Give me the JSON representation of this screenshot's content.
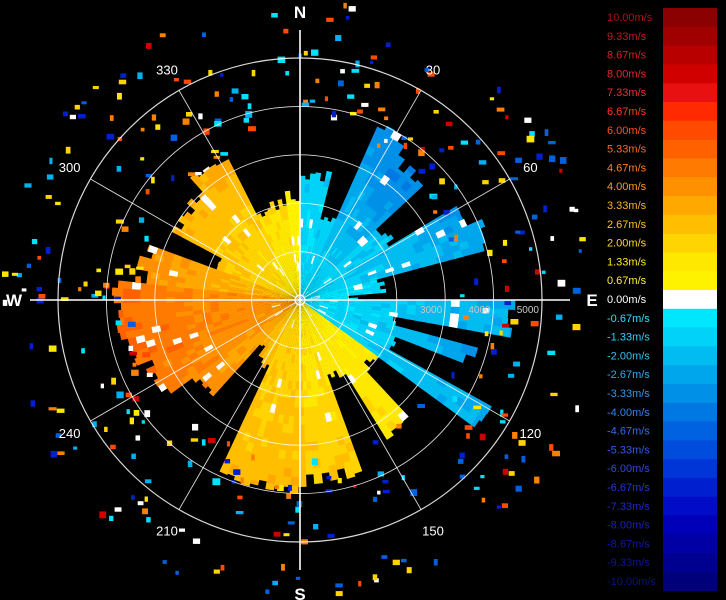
{
  "chart_data": {
    "type": "polar-radar-velocity",
    "cardinals": {
      "north": "N",
      "east": "E",
      "south": "S",
      "west": "W"
    },
    "azimuth_labels": [
      {
        "deg": 30,
        "text": "30"
      },
      {
        "deg": 60,
        "text": "60"
      },
      {
        "deg": 120,
        "text": "120"
      },
      {
        "deg": 150,
        "text": "150"
      },
      {
        "deg": 210,
        "text": "210"
      },
      {
        "deg": 240,
        "text": "240"
      },
      {
        "deg": 300,
        "text": "300"
      },
      {
        "deg": 330,
        "text": "330"
      }
    ],
    "range_rings": [
      1000,
      2000,
      3000,
      4000,
      5000
    ],
    "range_labels": [
      {
        "value": 3000,
        "text": "3000"
      },
      {
        "value": 4000,
        "text": "4000"
      },
      {
        "value": 5000,
        "text": "5000"
      }
    ],
    "max_range": 5000,
    "colorbar": {
      "unit": "m/s",
      "entries": [
        {
          "label": "10.00m/s",
          "value": 10.0,
          "color": "#8b0000",
          "text_color": "#b01010"
        },
        {
          "label": "9.33m/s",
          "value": 9.33,
          "color": "#a00000",
          "text_color": "#c81818"
        },
        {
          "label": "8.67m/s",
          "value": 8.67,
          "color": "#b80000",
          "text_color": "#d82020"
        },
        {
          "label": "8.00m/s",
          "value": 8.0,
          "color": "#d00000",
          "text_color": "#e82828"
        },
        {
          "label": "7.33m/s",
          "value": 7.33,
          "color": "#e81010",
          "text_color": "#f03030"
        },
        {
          "label": "6.67m/s",
          "value": 6.67,
          "color": "#ff2a00",
          "text_color": "#ff3a20"
        },
        {
          "label": "6.00m/s",
          "value": 6.0,
          "color": "#ff4a00",
          "text_color": "#ff5020"
        },
        {
          "label": "5.33m/s",
          "value": 5.33,
          "color": "#ff6000",
          "text_color": "#ff6a20"
        },
        {
          "label": "4.67m/s",
          "value": 4.67,
          "color": "#ff7a00",
          "text_color": "#ff8020"
        },
        {
          "label": "4.00m/s",
          "value": 4.0,
          "color": "#ff9000",
          "text_color": "#ff9a20"
        },
        {
          "label": "3.33m/s",
          "value": 3.33,
          "color": "#ffa800",
          "text_color": "#ffb020"
        },
        {
          "label": "2.67m/s",
          "value": 2.67,
          "color": "#ffbe00",
          "text_color": "#ffc420"
        },
        {
          "label": "2.00m/s",
          "value": 2.0,
          "color": "#ffd400",
          "text_color": "#ffd820"
        },
        {
          "label": "1.33m/s",
          "value": 1.33,
          "color": "#ffe800",
          "text_color": "#ffe820"
        },
        {
          "label": "0.67m/s",
          "value": 0.67,
          "color": "#fff200",
          "text_color": "#fff040"
        },
        {
          "label": "0.00m/s",
          "value": 0.0,
          "color": "#ffffff",
          "text_color": "#ffffff"
        },
        {
          "label": "-0.67m/s",
          "value": -0.67,
          "color": "#00e6ff",
          "text_color": "#30e0ff"
        },
        {
          "label": "-1.33m/s",
          "value": -1.33,
          "color": "#00d2f8",
          "text_color": "#30d0f8"
        },
        {
          "label": "-2.00m/s",
          "value": -2.0,
          "color": "#00bcf0",
          "text_color": "#30c0f0"
        },
        {
          "label": "-2.67m/s",
          "value": -2.67,
          "color": "#00a6ec",
          "text_color": "#30aaee"
        },
        {
          "label": "-3.33m/s",
          "value": -3.33,
          "color": "#0090e8",
          "text_color": "#3098ea"
        },
        {
          "label": "-4.00m/s",
          "value": -4.0,
          "color": "#0078e4",
          "text_color": "#3084e8"
        },
        {
          "label": "-4.67m/s",
          "value": -4.67,
          "color": "#0062e0",
          "text_color": "#3070e4"
        },
        {
          "label": "-5.33m/s",
          "value": -5.33,
          "color": "#004cdc",
          "text_color": "#305ce0"
        },
        {
          "label": "-6.00m/s",
          "value": -6.0,
          "color": "#0036d8",
          "text_color": "#3048dc"
        },
        {
          "label": "-6.67m/s",
          "value": -6.67,
          "color": "#0020d0",
          "text_color": "#2038d4"
        },
        {
          "label": "-7.33m/s",
          "value": -7.33,
          "color": "#000cc8",
          "text_color": "#2028c8"
        },
        {
          "label": "-8.00m/s",
          "value": -8.0,
          "color": "#0000b8",
          "text_color": "#1820b8"
        },
        {
          "label": "-8.67m/s",
          "value": -8.67,
          "color": "#0000a4",
          "text_color": "#1018a8"
        },
        {
          "label": "-9.33m/s",
          "value": -9.33,
          "color": "#000090",
          "text_color": "#101498"
        },
        {
          "label": "-10.00m/s",
          "value": -10.0,
          "color": "#00007a",
          "text_color": "#0c1088"
        }
      ]
    },
    "sectors": [
      {
        "az_start": 318,
        "az_end": 333,
        "range_max": 3350,
        "v_inner": 1.0,
        "v_outer": 3.3
      },
      {
        "az_start": 298,
        "az_end": 318,
        "range_max": 2950,
        "v_inner": 1.5,
        "v_outer": 3.0
      },
      {
        "az_start": 333,
        "az_end": 352,
        "range_max": 2000,
        "v_inner": 0.8,
        "v_outer": 1.8
      },
      {
        "az_start": 352,
        "az_end": 360,
        "range_max": 2150,
        "v_inner": 0.3,
        "v_outer": 0.7
      },
      {
        "az_start": 0,
        "az_end": 14,
        "range_max": 2600,
        "v_inner": -0.7,
        "v_outer": -1.5
      },
      {
        "az_start": 14,
        "az_end": 24,
        "range_max": 1750,
        "v_inner": -0.8,
        "v_outer": -1.6
      },
      {
        "az_start": 24,
        "az_end": 34,
        "range_max": 3900,
        "v_inner": -1.0,
        "v_outer": -3.5
      },
      {
        "az_start": 34,
        "az_end": 47,
        "range_max": 3500,
        "v_inner": -1.0,
        "v_outer": -3.8
      },
      {
        "az_start": 47,
        "az_end": 59,
        "range_max": 2200,
        "v_inner": -1.0,
        "v_outer": -1.8
      },
      {
        "az_start": 59,
        "az_end": 66,
        "range_max": 3700,
        "v_inner": -1.2,
        "v_outer": -3.0
      },
      {
        "az_start": 66,
        "az_end": 75,
        "range_max": 4000,
        "v_inner": -1.0,
        "v_outer": -2.8
      },
      {
        "az_start": 75,
        "az_end": 85,
        "range_max": 1700,
        "v_inner": -0.5,
        "v_outer": -1.2
      },
      {
        "az_start": 85,
        "az_end": 90,
        "range_max": 1100,
        "v_inner": -0.4,
        "v_outer": -0.9
      },
      {
        "az_start": 90,
        "az_end": 100,
        "range_max": 4400,
        "v_inner": -0.8,
        "v_outer": -2.6
      },
      {
        "az_start": 100,
        "az_end": 105,
        "range_max": 1900,
        "v_inner": -0.5,
        "v_outer": -1.4
      },
      {
        "az_start": 105,
        "az_end": 111,
        "range_max": 3700,
        "v_inner": -1.0,
        "v_outer": -2.8
      },
      {
        "az_start": 111,
        "az_end": 119,
        "range_max": 2200,
        "v_inner": -0.8,
        "v_outer": -1.6
      },
      {
        "az_start": 119,
        "az_end": 126,
        "range_max": 4400,
        "v_inner": -1.0,
        "v_outer": -2.5
      },
      {
        "az_start": 126,
        "az_end": 137,
        "range_max": 1900,
        "v_inner": 0.7,
        "v_outer": 1.3
      },
      {
        "az_start": 137,
        "az_end": 148,
        "range_max": 3300,
        "v_inner": 0.9,
        "v_outer": 1.6
      },
      {
        "az_start": 148,
        "az_end": 160,
        "range_max": 1700,
        "v_inner": 0.8,
        "v_outer": 1.5
      },
      {
        "az_start": 160,
        "az_end": 178,
        "range_max": 3700,
        "v_inner": 1.2,
        "v_outer": 2.3
      },
      {
        "az_start": 178,
        "az_end": 205,
        "range_max": 3900,
        "v_inner": 1.8,
        "v_outer": 2.8
      },
      {
        "az_start": 205,
        "az_end": 214,
        "range_max": 1500,
        "v_inner": 2.0,
        "v_outer": 2.8
      },
      {
        "az_start": 214,
        "az_end": 222,
        "range_max": 1300,
        "v_inner": 2.3,
        "v_outer": 3.0
      },
      {
        "az_start": 222,
        "az_end": 234,
        "range_max": 2700,
        "v_inner": 3.0,
        "v_outer": 4.2
      },
      {
        "az_start": 234,
        "az_end": 248,
        "range_max": 3400,
        "v_inner": 3.4,
        "v_outer": 4.8
      },
      {
        "az_start": 248,
        "az_end": 262,
        "range_max": 3700,
        "v_inner": 3.6,
        "v_outer": 5.2
      },
      {
        "az_start": 262,
        "az_end": 276,
        "range_max": 3800,
        "v_inner": 3.6,
        "v_outer": 5.0
      },
      {
        "az_start": 276,
        "az_end": 290,
        "range_max": 3300,
        "v_inner": 2.5,
        "v_outer": 4.0
      },
      {
        "az_start": 290,
        "az_end": 298,
        "range_max": 1800,
        "v_inner": 1.8,
        "v_outer": 2.5
      }
    ]
  }
}
